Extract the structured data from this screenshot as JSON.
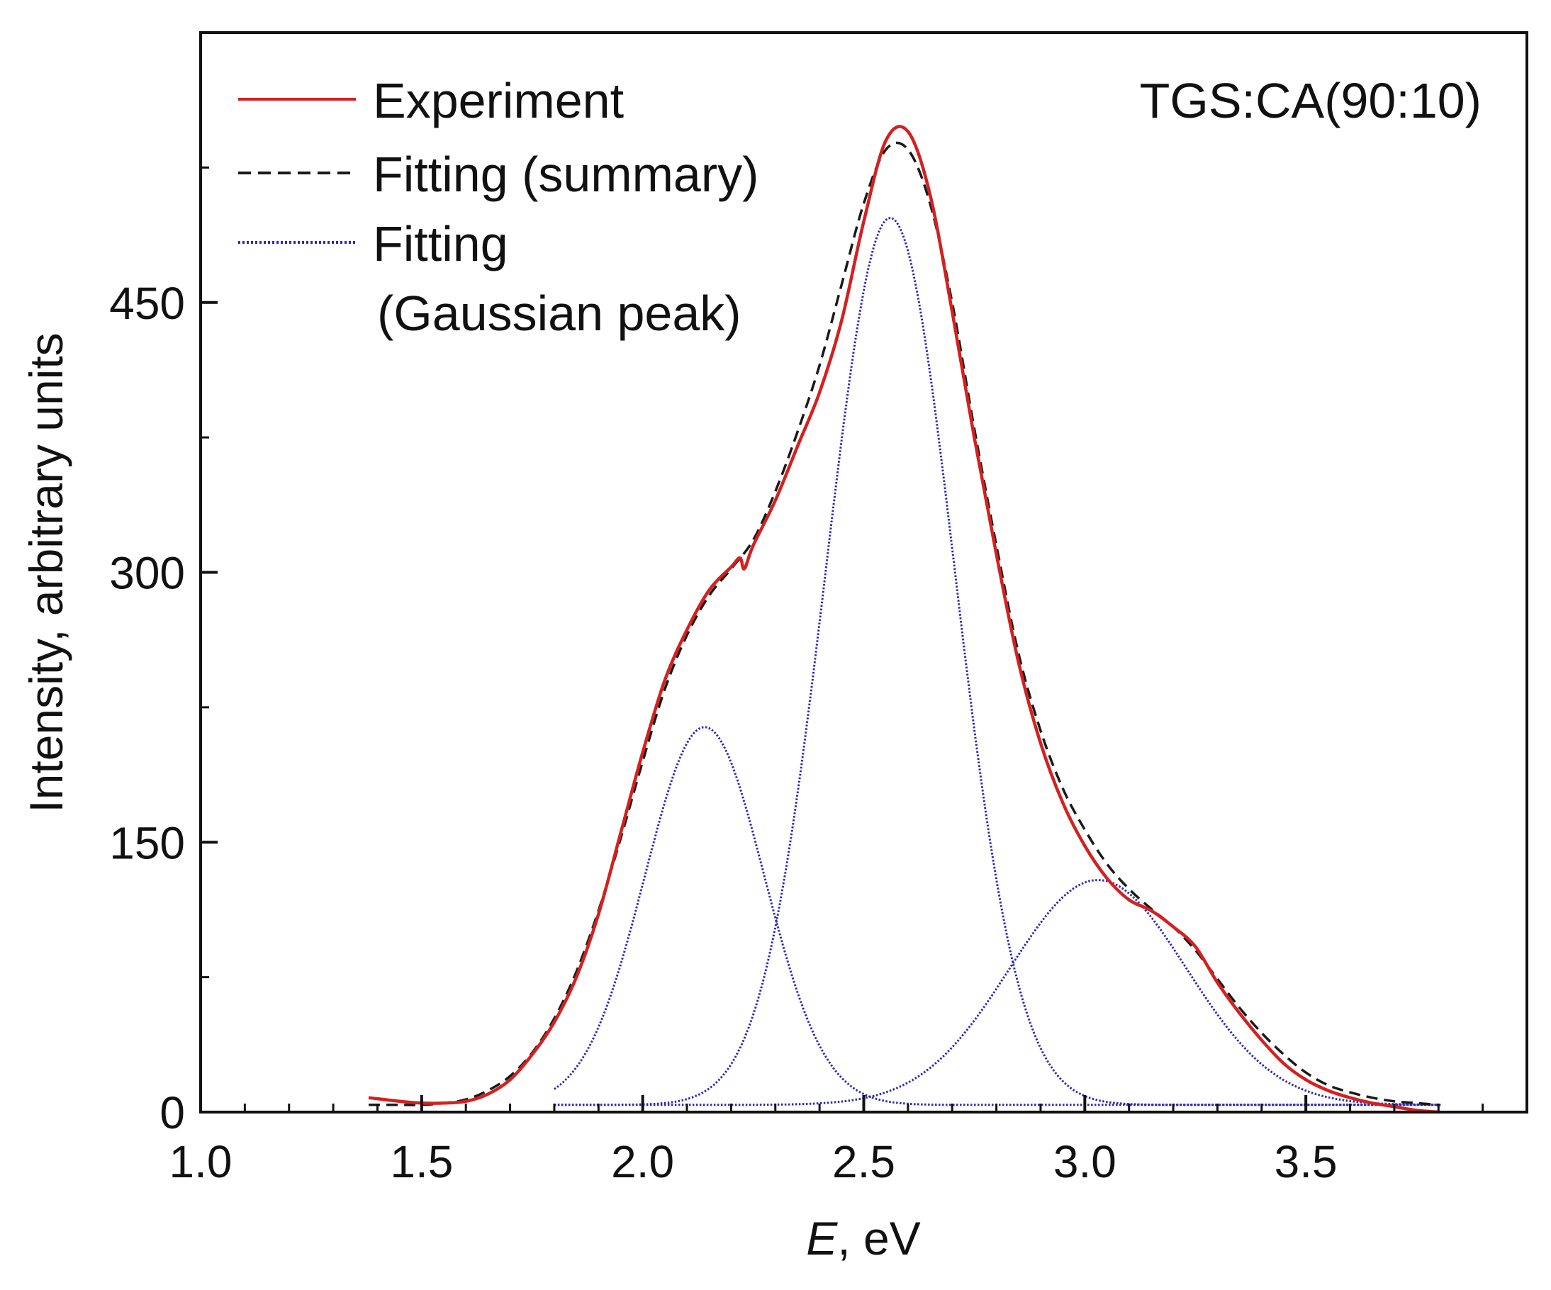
{
  "chart_data": {
    "type": "line",
    "title": "",
    "annotation": "TGS:CA(90:10)",
    "xlabel_italic": "E",
    "xlabel_rest": ", eV",
    "ylabel": "Intensity, arbitrary units",
    "xlim": [
      1.0,
      4.0
    ],
    "ylim": [
      0,
      600
    ],
    "xticks": [
      1.0,
      1.5,
      2.0,
      2.5,
      3.0,
      3.5
    ],
    "xtick_labels": [
      "1.0",
      "1.5",
      "2.0",
      "2.5",
      "3.0",
      "3.5"
    ],
    "yticks": [
      0,
      150,
      300,
      450
    ],
    "ytick_labels": [
      "0",
      "150",
      "300",
      "450"
    ],
    "legend_position": "top-left",
    "legend": {
      "experiment": "Experiment",
      "summary": "Fitting (summary)",
      "gaussian_line1": "Fitting",
      "gaussian_line2": "(Gaussian peak)"
    },
    "colors": {
      "experiment": "#d42020",
      "summary": "#1a1a1a",
      "gaussian": "#2a2ab8",
      "axis": "#111111"
    },
    "baseline": 4,
    "gaussian_peaks": [
      {
        "center": 2.14,
        "sigma": 0.135,
        "amplitude": 210
      },
      {
        "center": 2.56,
        "sigma": 0.145,
        "amplitude": 493
      },
      {
        "center": 3.03,
        "sigma": 0.2,
        "amplitude": 125
      }
    ],
    "series": [
      {
        "name": "Experiment",
        "x": [
          1.38,
          1.45,
          1.5,
          1.55,
          1.6,
          1.65,
          1.7,
          1.75,
          1.8,
          1.85,
          1.9,
          1.95,
          2.0,
          2.05,
          2.1,
          2.15,
          2.2,
          2.22,
          2.23,
          2.25,
          2.3,
          2.35,
          2.4,
          2.45,
          2.5,
          2.55,
          2.6,
          2.65,
          2.7,
          2.75,
          2.8,
          2.85,
          2.9,
          2.95,
          3.0,
          3.05,
          3.1,
          3.15,
          3.2,
          3.25,
          3.3,
          3.35,
          3.4,
          3.45,
          3.5,
          3.55,
          3.6,
          3.65,
          3.7,
          3.75,
          3.8
        ],
        "y": [
          8,
          6,
          5,
          5,
          6,
          10,
          18,
          32,
          50,
          75,
          110,
          155,
          200,
          240,
          268,
          290,
          303,
          308,
          302,
          315,
          340,
          370,
          400,
          440,
          495,
          540,
          545,
          510,
          445,
          375,
          310,
          250,
          205,
          172,
          148,
          130,
          118,
          112,
          103,
          92,
          72,
          55,
          40,
          27,
          18,
          12,
          8,
          5,
          3,
          1,
          0
        ]
      },
      {
        "name": "Fitting (summary)",
        "x": [
          1.38,
          1.45,
          1.5,
          1.55,
          1.6,
          1.65,
          1.7,
          1.75,
          1.8,
          1.85,
          1.9,
          1.95,
          2.0,
          2.05,
          2.1,
          2.15,
          2.2,
          2.25,
          2.3,
          2.35,
          2.4,
          2.45,
          2.5,
          2.55,
          2.6,
          2.65,
          2.7,
          2.75,
          2.8,
          2.85,
          2.9,
          2.95,
          3.0,
          3.05,
          3.1,
          3.15,
          3.2,
          3.25,
          3.3,
          3.35,
          3.4,
          3.45,
          3.5,
          3.55,
          3.6,
          3.65,
          3.7,
          3.75,
          3.8
        ],
        "y": [
          4,
          4,
          4,
          5,
          7,
          12,
          20,
          33,
          52,
          78,
          112,
          152,
          195,
          235,
          265,
          287,
          302,
          318,
          345,
          378,
          415,
          460,
          505,
          535,
          535,
          505,
          450,
          380,
          315,
          255,
          212,
          180,
          157,
          138,
          124,
          113,
          103,
          90,
          74,
          58,
          44,
          32,
          22,
          15,
          11,
          8,
          6,
          5,
          4
        ]
      }
    ]
  }
}
